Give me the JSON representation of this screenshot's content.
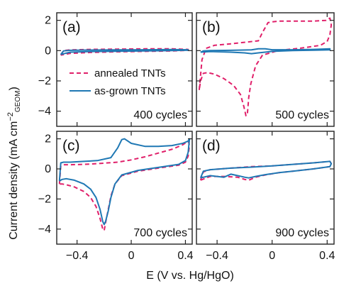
{
  "chart_data": {
    "type": "line",
    "ylabel": "Current density (mA cm",
    "ylabel_exp": "−2",
    "ylabel_sub": "GEOM",
    "ylabel_tail": ")",
    "xlabel": "E (V vs. Hg/HgO)",
    "xlim": [
      -0.55,
      0.45
    ],
    "ylim": [
      -5.0,
      2.5
    ],
    "x_ticks": [
      -0.4,
      0,
      0.4
    ],
    "x_tick_labels": [
      "−0.4",
      "0",
      "0.4"
    ],
    "y_ticks": [
      2,
      0,
      -2,
      -4
    ],
    "y_tick_labels": [
      "2",
      "0",
      "−2",
      "−4"
    ],
    "colors": {
      "annealed": "#e0206a",
      "asgrown": "#1f78b4"
    },
    "legend": {
      "panel": "a",
      "entries": [
        {
          "name": "annealed TNTs",
          "style": "dashed",
          "color": "#e0206a"
        },
        {
          "name": "as-grown TNTs",
          "style": "solid",
          "color": "#1f78b4"
        }
      ]
    },
    "panels": [
      {
        "letter": "(a)",
        "cycles": "400 cycles",
        "series": [
          {
            "name": "annealed TNTs",
            "x": [
              -0.52,
              -0.5,
              -0.45,
              -0.3,
              -0.1,
              0.1,
              0.3,
              0.42,
              0.42,
              0.3,
              0.1,
              -0.1,
              -0.3,
              -0.45,
              -0.52
            ],
            "y": [
              -0.3,
              0.0,
              0.05,
              0.08,
              0.1,
              0.12,
              0.12,
              0.08,
              0.02,
              -0.02,
              -0.05,
              -0.08,
              -0.12,
              -0.18,
              -0.3
            ]
          },
          {
            "name": "as-grown TNTs",
            "x": [
              -0.52,
              -0.5,
              -0.45,
              -0.3,
              -0.1,
              0.1,
              0.3,
              0.42,
              0.42,
              0.3,
              0.1,
              -0.1,
              -0.3,
              -0.45,
              -0.52
            ],
            "y": [
              -0.25,
              -0.02,
              0.02,
              0.04,
              0.05,
              0.06,
              0.07,
              0.06,
              0.03,
              0.0,
              -0.02,
              -0.04,
              -0.06,
              -0.1,
              -0.25
            ]
          }
        ]
      },
      {
        "letter": "(b)",
        "cycles": "500 cycles",
        "series": [
          {
            "name": "annealed TNTs",
            "x": [
              -0.53,
              -0.51,
              -0.48,
              -0.42,
              -0.3,
              -0.2,
              -0.1,
              -0.07,
              -0.03,
              0.0,
              0.05,
              0.15,
              0.3,
              0.39,
              0.42,
              0.43,
              0.42,
              0.4,
              0.35,
              0.2,
              0.05,
              -0.07,
              -0.12,
              -0.155,
              -0.17,
              -0.18,
              -0.19,
              -0.205,
              -0.23,
              -0.28,
              -0.35,
              -0.42,
              -0.47,
              -0.5,
              -0.52,
              -0.53
            ],
            "y": [
              -2.6,
              -0.6,
              0.15,
              0.35,
              0.45,
              0.55,
              0.65,
              1.2,
              1.85,
              1.9,
              1.95,
              1.95,
              1.95,
              2.0,
              2.15,
              1.7,
              1.05,
              0.6,
              0.35,
              0.15,
              0.02,
              -0.3,
              -1.0,
              -2.2,
              -3.1,
              -4.2,
              -4.3,
              -3.7,
              -2.9,
              -2.3,
              -1.85,
              -1.55,
              -1.45,
              -1.5,
              -2.0,
              -2.6
            ]
          },
          {
            "name": "as-grown TNTs",
            "x": [
              -0.52,
              -0.5,
              -0.45,
              -0.3,
              -0.15,
              -0.1,
              -0.05,
              0.0,
              0.15,
              0.3,
              0.42,
              0.42,
              0.3,
              0.15,
              0.0,
              -0.1,
              -0.15,
              -0.2,
              -0.3,
              -0.45,
              -0.52
            ],
            "y": [
              -0.1,
              -0.02,
              0.0,
              0.02,
              0.05,
              0.12,
              0.12,
              0.06,
              0.06,
              0.08,
              0.12,
              0.05,
              0.03,
              0.0,
              -0.05,
              -0.15,
              -0.2,
              -0.15,
              -0.1,
              -0.06,
              -0.1
            ]
          }
        ]
      },
      {
        "letter": "(c)",
        "cycles": "700 cycles",
        "series": [
          {
            "name": "annealed TNTs",
            "x": [
              -0.53,
              -0.52,
              -0.5,
              -0.45,
              -0.35,
              -0.25,
              -0.1,
              0.0,
              0.1,
              0.2,
              0.3,
              0.38,
              0.42,
              0.43,
              0.42,
              0.4,
              0.35,
              0.2,
              0.05,
              -0.07,
              -0.12,
              -0.15,
              -0.17,
              -0.19,
              -0.2,
              -0.21,
              -0.23,
              -0.26,
              -0.3,
              -0.35,
              -0.42,
              -0.48,
              -0.51,
              -0.53
            ],
            "y": [
              -1.0,
              0.2,
              0.28,
              0.28,
              0.3,
              0.35,
              0.45,
              0.6,
              0.8,
              1.05,
              1.3,
              1.6,
              1.85,
              1.6,
              0.85,
              0.45,
              0.25,
              0.05,
              -0.15,
              -0.45,
              -1.0,
              -1.8,
              -2.7,
              -3.6,
              -4.1,
              -4.0,
              -3.3,
              -2.5,
              -1.9,
              -1.5,
              -1.2,
              -1.05,
              -1.0,
              -1.0
            ]
          },
          {
            "name": "as-grown TNTs",
            "x": [
              -0.53,
              -0.52,
              -0.5,
              -0.45,
              -0.35,
              -0.25,
              -0.15,
              -0.1,
              -0.07,
              -0.05,
              0.0,
              0.1,
              0.2,
              0.3,
              0.38,
              0.42,
              0.43,
              0.42,
              0.4,
              0.35,
              0.2,
              0.05,
              -0.07,
              -0.12,
              -0.15,
              -0.17,
              -0.19,
              -0.2,
              -0.21,
              -0.23,
              -0.26,
              -0.3,
              -0.35,
              -0.42,
              -0.48,
              -0.51,
              -0.53
            ],
            "y": [
              -0.8,
              0.4,
              0.45,
              0.45,
              0.5,
              0.55,
              0.75,
              1.4,
              1.95,
              2.0,
              1.7,
              1.5,
              1.5,
              1.55,
              1.7,
              1.85,
              2.0,
              1.1,
              0.55,
              0.3,
              0.1,
              -0.1,
              -0.4,
              -1.0,
              -1.9,
              -2.8,
              -3.5,
              -3.7,
              -3.5,
              -2.7,
              -1.9,
              -1.35,
              -1.0,
              -0.75,
              -0.65,
              -0.7,
              -0.8
            ]
          }
        ]
      },
      {
        "letter": "(d)",
        "cycles": "900 cycles",
        "series": [
          {
            "name": "annealed TNTs",
            "x": [
              -0.52,
              -0.5,
              -0.45,
              -0.3,
              -0.15,
              0.0,
              0.15,
              0.3,
              0.42,
              0.43,
              0.42,
              0.3,
              0.15,
              0.05,
              -0.05,
              -0.12,
              -0.17,
              -0.2,
              -0.25,
              -0.35,
              -0.45,
              -0.52
            ],
            "y": [
              -0.75,
              -0.2,
              -0.05,
              0.05,
              0.15,
              0.2,
              0.3,
              0.4,
              0.5,
              0.35,
              0.15,
              0.0,
              -0.15,
              -0.25,
              -0.4,
              -0.55,
              -0.75,
              -0.7,
              -0.55,
              -0.5,
              -0.5,
              -0.75
            ]
          },
          {
            "name": "as-grown TNTs",
            "x": [
              -0.52,
              -0.5,
              -0.45,
              -0.3,
              -0.15,
              0.0,
              0.15,
              0.3,
              0.42,
              0.43,
              0.42,
              0.3,
              0.15,
              0.05,
              -0.05,
              -0.12,
              -0.17,
              -0.2,
              -0.25,
              -0.3,
              -0.35,
              -0.45,
              -0.52
            ],
            "y": [
              -0.6,
              -0.15,
              -0.05,
              0.05,
              0.12,
              0.2,
              0.3,
              0.4,
              0.5,
              0.35,
              0.15,
              0.0,
              -0.15,
              -0.25,
              -0.38,
              -0.5,
              -0.6,
              -0.55,
              -0.45,
              -0.35,
              -0.55,
              -0.45,
              -0.6
            ]
          }
        ]
      }
    ]
  }
}
